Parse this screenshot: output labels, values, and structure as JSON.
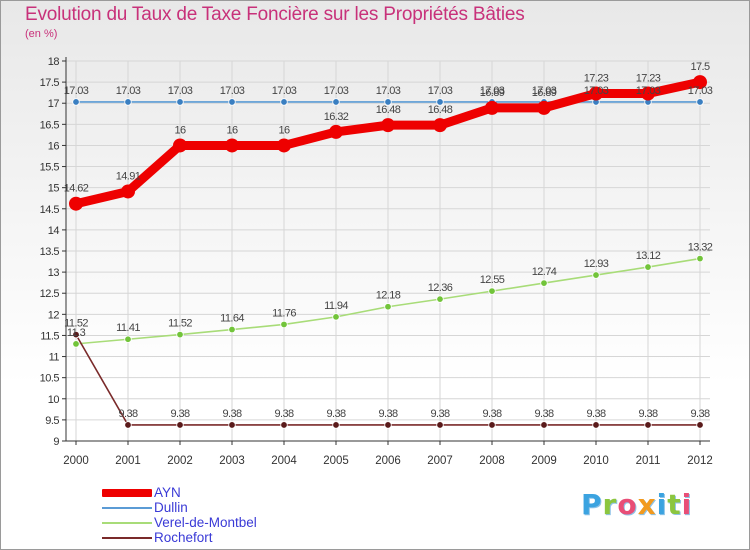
{
  "title": "Evolution du Taux de Taxe Foncière sur les Propriétés Bâties",
  "unit_label": "(en %)",
  "brand": {
    "text": "Proxiti",
    "colors": [
      "#f29a1f",
      "#3ba3e0",
      "#8cc63f",
      "#e94e77"
    ]
  },
  "chart_data": {
    "type": "line",
    "title": "Evolution du Taux de Taxe Foncière sur les Propriétés Bâties",
    "ylabel": "(en %)",
    "xlabel": "",
    "ylim": [
      9,
      18
    ],
    "yticks": [
      "9",
      "9.5",
      "10",
      "10.5",
      "11",
      "11.5",
      "12",
      "12.5",
      "13",
      "13.5",
      "14",
      "14.5",
      "15",
      "15.5",
      "16",
      "16.5",
      "17",
      "17.5",
      "18"
    ],
    "categories": [
      "2000",
      "2001",
      "2002",
      "2003",
      "2004",
      "2005",
      "2006",
      "2007",
      "2008",
      "2009",
      "2010",
      "2011",
      "2012"
    ],
    "series": [
      {
        "name": "Dullin",
        "color": "#5b9bd5",
        "marker": "#3a7fc1",
        "values": [
          17.03,
          17.03,
          17.03,
          17.03,
          17.03,
          17.03,
          17.03,
          17.03,
          17.03,
          17.03,
          17.03,
          17.03,
          17.03
        ],
        "labels": [
          "17.03",
          "17.03",
          "17.03",
          "17.03",
          "17.03",
          "17.03",
          "17.03",
          "17.03",
          "17.03",
          "17.03",
          "17.03",
          "17.03",
          "17.03"
        ]
      },
      {
        "name": "Verel-de-Montbel",
        "color": "#a8dc78",
        "marker": "#72c43a",
        "values": [
          11.3,
          11.41,
          11.52,
          11.64,
          11.76,
          11.94,
          12.18,
          12.36,
          12.55,
          12.74,
          12.93,
          13.12,
          13.32
        ],
        "labels": [
          "11.3",
          "11.41",
          "11.52",
          "11.64",
          "11.76",
          "11.94",
          "12.18",
          "12.36",
          "12.55",
          "12.74",
          "12.93",
          "13.12",
          "13.32"
        ]
      },
      {
        "name": "Rochefort",
        "color": "#7a2a2a",
        "marker": "#5a1a1a",
        "values": [
          11.52,
          9.38,
          9.38,
          9.38,
          9.38,
          9.38,
          9.38,
          9.38,
          9.38,
          9.38,
          9.38,
          9.38,
          9.38
        ],
        "labels": [
          "11.52",
          "9.38",
          "9.38",
          "9.38",
          "9.38",
          "9.38",
          "9.38",
          "9.38",
          "9.38",
          "9.38",
          "9.38",
          "9.38",
          "9.38"
        ]
      },
      {
        "name": "AYN",
        "color": "#ee0000",
        "marker": "#ee0000",
        "values": [
          14.62,
          14.91,
          16,
          16,
          16,
          16.32,
          16.48,
          16.48,
          16.89,
          16.89,
          17.23,
          17.23,
          17.5
        ],
        "labels": [
          "14.62",
          "14.91",
          "16",
          "16",
          "16",
          "16.32",
          "16.48",
          "16.48",
          "16.89",
          "16.89",
          "17.23",
          "17.23",
          "17.5"
        ]
      }
    ],
    "legend": [
      "AYN",
      "Dullin",
      "Verel-de-Montbel",
      "Rochefort"
    ]
  }
}
